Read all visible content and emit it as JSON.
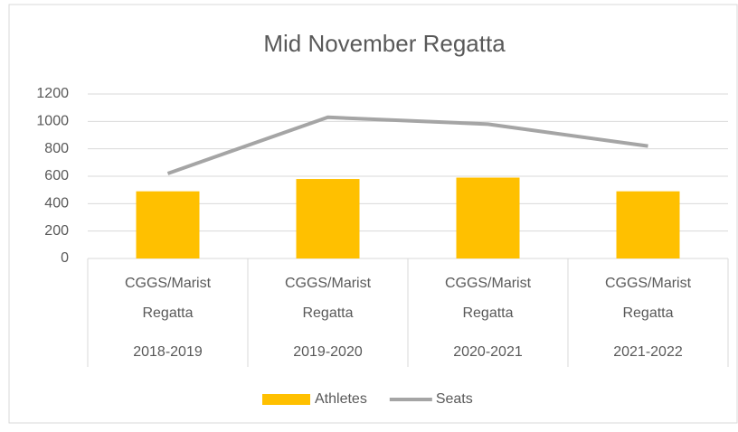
{
  "chart_data": {
    "type": "combo",
    "title": "Mid November Regatta",
    "categories": [
      "2018-2019",
      "2019-2020",
      "2020-2021",
      "2021-2022"
    ],
    "sublabels": [
      "CGGS/Marist Regatta",
      "CGGS/Marist Regatta",
      "CGGS/Marist Regatta",
      "CGGS/Marist Regatta"
    ],
    "series": [
      {
        "name": "Athletes",
        "type": "bar",
        "color": "#ffc000",
        "values": [
          490,
          580,
          590,
          490
        ]
      },
      {
        "name": "Seats",
        "type": "line",
        "color": "#a5a5a5",
        "values": [
          620,
          1030,
          980,
          820
        ]
      }
    ],
    "ylim": [
      0,
      1200
    ],
    "yticks": [
      0,
      200,
      400,
      600,
      800,
      1000,
      1200
    ],
    "grid": true,
    "legend": "bottom"
  }
}
